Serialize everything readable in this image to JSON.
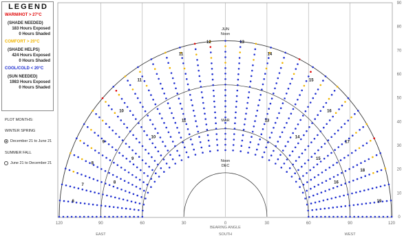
{
  "legend": {
    "title": "LEGEND",
    "categories": [
      {
        "label": "WARM/HOT > 27°C",
        "color": "#e00000",
        "note": "(SHADE NEEDED)",
        "exposed": "183 Hours Exposed",
        "shaded": "0 Hours Shaded"
      },
      {
        "label": "COMFORT > 20°C",
        "color": "#f0b400",
        "note": "(SHADE HELPS)",
        "exposed": "424 Hours Exposed",
        "shaded": "0 Hours Shaded"
      },
      {
        "label": "COOL/COLD < 20°C",
        "color": "#1f2fd0",
        "note": "(SUN NEEDED)",
        "exposed": "1983 Hours Exposed",
        "shaded": "0 Hours Shaded"
      }
    ]
  },
  "plot_months": {
    "heading": "PLOT MONTHS:",
    "group1": "WINTER SPRING",
    "option1": "December 21 to June 21",
    "group2": "SUMMER FALL",
    "option2": "June 21 to December 21",
    "selected": 1
  },
  "chart_data": {
    "type": "scatter",
    "xlabel": "BEARING ANGLE",
    "x_direction_labels": [
      "EAST",
      "SOUTH",
      "WEST"
    ],
    "x_ticks": [
      "120",
      "90",
      "60",
      "30",
      "0",
      "30",
      "60",
      "90",
      "120"
    ],
    "y_ticks": [
      "0",
      "10",
      "20",
      "30",
      "40",
      "50",
      "60",
      "70",
      "80",
      "90"
    ],
    "xlim": [
      -120,
      120
    ],
    "ylim": [
      0,
      90
    ],
    "grid": true,
    "hour_labels": [
      "6",
      "7",
      "8",
      "9",
      "10",
      "11",
      "11",
      "12",
      "13",
      "14",
      "15",
      "16",
      "17",
      "18",
      "19",
      "8",
      "9",
      "10",
      "11",
      "13",
      "14",
      "15",
      "16"
    ],
    "path_labels": {
      "jun": "JUN",
      "jun_sub": "Noon",
      "mar": "MAR",
      "dec": "Noon",
      "dec_sub": "DEC"
    },
    "series": [
      {
        "name": "WARM/HOT > 27°C",
        "color": "#e00000"
      },
      {
        "name": "COMFORT > 20°C",
        "color": "#f0b400"
      },
      {
        "name": "COOL/COLD < 20°C",
        "color": "#1f2fd0"
      }
    ],
    "sun_paths": [
      {
        "path": "JUN",
        "noon_altitude": 74,
        "sunrise_bearing": 120
      },
      {
        "path": "MAR",
        "noon_altitude": 51,
        "sunrise_bearing": 90
      },
      {
        "path": "DEC",
        "noon_altitude": 28,
        "sunrise_bearing": 60
      }
    ]
  }
}
